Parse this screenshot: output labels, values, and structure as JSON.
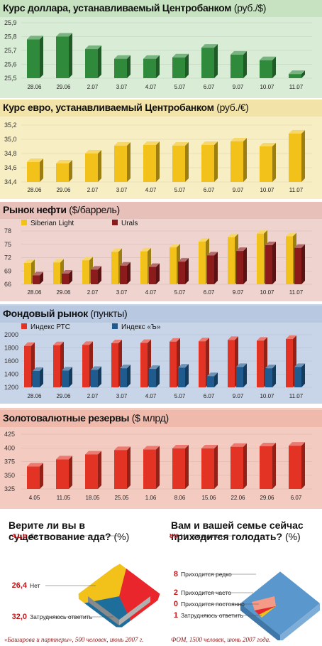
{
  "colors": {
    "green_panel": "#d9ecd5",
    "green_bar": "#2f8a3c",
    "yellow_panel": "#f7eec4",
    "yellow_bar": "#f2c21a",
    "pink_panel": "#efd3cf",
    "red_bar": "#e23324",
    "dark_red": "#8c1b1b",
    "blue_panel": "#c8d5e8",
    "blue_bar": "#1f5b8e",
    "salmon_panel": "#f4cbc0",
    "orange_red": "#e8452c",
    "survey_red": "#e8262b",
    "survey_blue": "#1e6e9b",
    "survey_yellow": "#f2c21a",
    "survey_lightblue": "#5a97cc"
  },
  "chart_data": [
    {
      "type": "bar",
      "title": "Курс доллара, устанавливаемый Центробанком",
      "title_unit": "(руб./$)",
      "categories": [
        "28.06",
        "29.06",
        "2.07",
        "3.07",
        "4.07",
        "5.07",
        "6.07",
        "9.07",
        "10.07",
        "11.07"
      ],
      "values": [
        25.78,
        25.8,
        25.71,
        25.64,
        25.64,
        25.65,
        25.72,
        25.67,
        25.63,
        25.53
      ],
      "ylim": [
        25.5,
        25.9
      ],
      "yticks": [
        "25,5",
        "25,6",
        "25,7",
        "25,8",
        "25,9"
      ],
      "ytick_values": [
        25.5,
        25.6,
        25.7,
        25.8,
        25.9
      ]
    },
    {
      "type": "bar",
      "title": "Курс евро, устанавливаемый Центробанком",
      "title_unit": "(руб./€)",
      "categories": [
        "28.06",
        "29.06",
        "2.07",
        "3.07",
        "4.07",
        "5.07",
        "6.07",
        "9.07",
        "10.07",
        "11.07"
      ],
      "values": [
        34.68,
        34.66,
        34.8,
        34.91,
        34.92,
        34.91,
        34.92,
        34.97,
        34.9,
        35.08
      ],
      "ylim": [
        34.4,
        35.2
      ],
      "yticks": [
        "34,4",
        "34,6",
        "34,8",
        "35,0",
        "35,2"
      ],
      "ytick_values": [
        34.4,
        34.6,
        34.8,
        35.0,
        35.2
      ]
    },
    {
      "type": "bar",
      "title": "Рынок нефти",
      "title_unit": "($/баррель)",
      "categories": [
        "28.06",
        "29.06",
        "2.07",
        "3.07",
        "4.07",
        "5.07",
        "6.07",
        "9.07",
        "10.07",
        "11.07"
      ],
      "series": [
        {
          "name": "Siberian Light",
          "values": [
            70.8,
            70.9,
            71.4,
            73.3,
            73.4,
            74.3,
            75.6,
            76.6,
            77.4,
            76.8
          ]
        },
        {
          "name": "Urals",
          "values": [
            68.0,
            68.4,
            69.3,
            70.2,
            69.9,
            71.1,
            72.5,
            73.5,
            74.8,
            74.2
          ]
        }
      ],
      "ylim": [
        66,
        78
      ],
      "yticks": [
        "66",
        "69",
        "72",
        "75",
        "78"
      ],
      "ytick_values": [
        66,
        69,
        72,
        75,
        78
      ]
    },
    {
      "type": "bar",
      "title": "Фондовый рынок",
      "title_unit": "(пункты)",
      "categories": [
        "28.06",
        "29.06",
        "2.07",
        "3.07",
        "4.07",
        "5.07",
        "6.07",
        "9.07",
        "10.07",
        "11.07"
      ],
      "series": [
        {
          "name": "Индекс РТС",
          "values": [
            1830,
            1840,
            1845,
            1870,
            1875,
            1895,
            1900,
            1920,
            1910,
            1935
          ]
        },
        {
          "name": "Индекс «Ъ»",
          "values": [
            1450,
            1455,
            1465,
            1490,
            1480,
            1500,
            1370,
            1510,
            1490,
            1510
          ]
        }
      ],
      "ylim": [
        1200,
        2000
      ],
      "yticks": [
        "1200",
        "1400",
        "1600",
        "1800",
        "2000"
      ],
      "ytick_values": [
        1200,
        1400,
        1600,
        1800,
        2000
      ]
    },
    {
      "type": "bar",
      "title": "Золотовалютные резервы",
      "title_unit": "($ млрд)",
      "categories": [
        "4.05",
        "11.05",
        "18.05",
        "25.05",
        "1.06",
        "8.06",
        "15.06",
        "22.06",
        "29.06",
        "6.07"
      ],
      "values": [
        366,
        379,
        388,
        396,
        397,
        399,
        399,
        402,
        403,
        404
      ],
      "ylim": [
        325,
        425
      ],
      "yticks": [
        "325",
        "350",
        "375",
        "400",
        "425"
      ],
      "ytick_values": [
        325,
        350,
        375,
        400,
        425
      ]
    },
    {
      "type": "pie",
      "title": "Верите ли вы в существование ада?",
      "title_unit": "(%)",
      "slices": [
        {
          "label": "Да",
          "value_text": "41,6",
          "value": 41.6
        },
        {
          "label": "Нет",
          "value_text": "26,4",
          "value": 26.4
        },
        {
          "label": "Затрудняюсь ответить",
          "value_text": "32,0",
          "value": 32.0
        }
      ],
      "source": "«Баширова и партнеры», 500 человек, июнь 2007 г."
    },
    {
      "type": "pie",
      "title": "Вам и вашей семье сейчас приходится голодать?",
      "title_unit": "(%)",
      "slices": [
        {
          "label": "Не приходится",
          "value_text": "89",
          "value": 89
        },
        {
          "label": "Приходится редко",
          "value_text": "8",
          "value": 8
        },
        {
          "label": "Приходится часто",
          "value_text": "2",
          "value": 2
        },
        {
          "label": "Приходится постоянно",
          "value_text": "0",
          "value": 0
        },
        {
          "label": "Затрудняюсь ответить",
          "value_text": "1",
          "value": 1
        }
      ],
      "source": "ФОМ, 1500 человек, июнь 2007 года."
    }
  ]
}
